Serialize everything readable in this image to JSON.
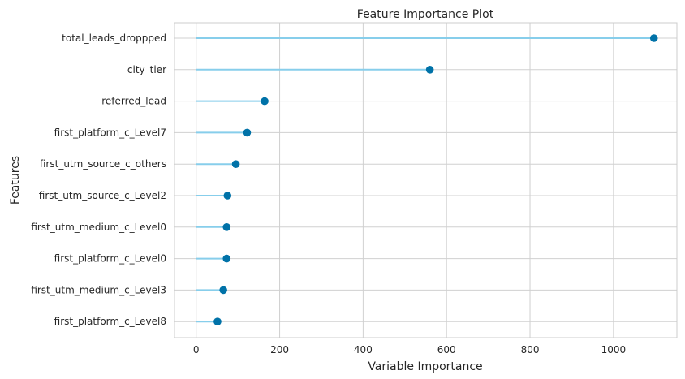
{
  "chart_data": {
    "type": "lollipop",
    "orientation": "horizontal",
    "title": "Feature Importance Plot",
    "xlabel": "Variable Importance",
    "ylabel": "Features",
    "xlim": [
      -52,
      1152
    ],
    "xticks": [
      0,
      200,
      400,
      600,
      800,
      1000
    ],
    "grid": true,
    "categories": [
      "total_leads_droppped",
      "city_tier",
      "referred_lead",
      "first_platform_c_Level7",
      "first_utm_source_c_others",
      "first_utm_source_c_Level2",
      "first_utm_medium_c_Level0",
      "first_platform_c_Level0",
      "first_utm_medium_c_Level3",
      "first_platform_c_Level8"
    ],
    "values": [
      1097,
      560,
      164,
      122,
      95,
      75,
      73,
      73,
      65,
      51
    ],
    "colors": {
      "stem": "#87CEEB",
      "marker": "#0072A8",
      "background": "#ffffff",
      "grid": "#d0d0d0",
      "spine": "#cccccc"
    }
  }
}
